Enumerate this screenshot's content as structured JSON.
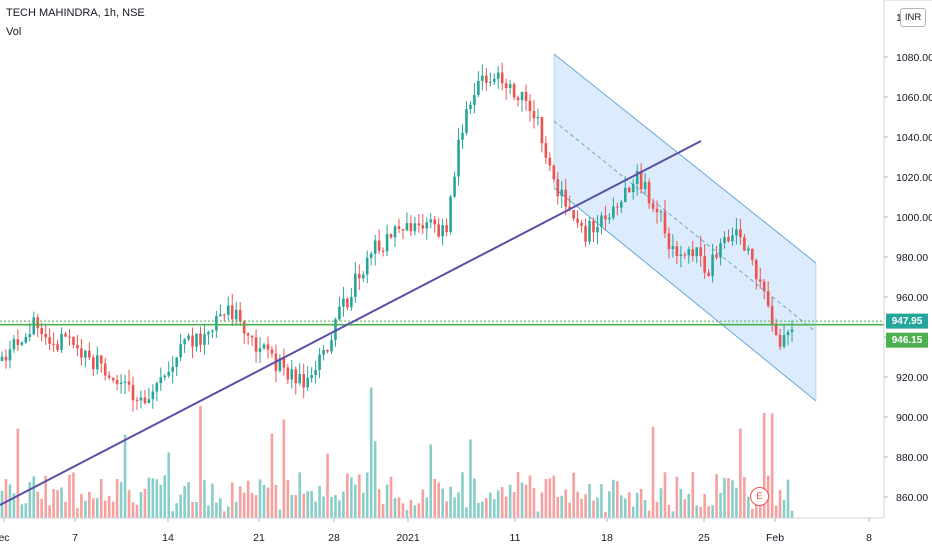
{
  "header": {
    "symbol_line": "TECH MAHINDRA, 1h, NSE",
    "indicator": "Vol"
  },
  "currency_badge": "INR",
  "earnings_marker": "E",
  "price_labels": {
    "upper": "947.95",
    "lower": "946.15"
  },
  "colors": {
    "up": "#26a69a",
    "down": "#ef5350",
    "trendline": "#5b4ea6",
    "horizontal_line": "#4caf50",
    "channel_line": "#6aa6d8",
    "channel_fill": "#d6e9fb",
    "label_upper_bg": "#26a69a",
    "label_lower_bg": "#4caf50"
  },
  "chart_data": {
    "type": "candlestick",
    "title": "TECH MAHINDRA, 1h, NSE",
    "y_axis": {
      "ticks": [
        "1080.00",
        "1060.00",
        "1040.00",
        "1020.00",
        "1000.00",
        "980.00",
        "960.00",
        "940.00",
        "920.00",
        "900.00",
        "880.00",
        "860.00"
      ],
      "range": [
        856,
        1100
      ]
    },
    "x_axis": {
      "tick_labels": [
        "ec",
        "7",
        "14",
        "21",
        "28",
        "2021",
        "11",
        "18",
        "25",
        "Feb",
        "8"
      ]
    },
    "price_path": [
      [
        0,
        928
      ],
      [
        1,
        938
      ],
      [
        2,
        946
      ],
      [
        3,
        944
      ],
      [
        4,
        938
      ],
      [
        5,
        935
      ],
      [
        6,
        932
      ],
      [
        7,
        926
      ],
      [
        8,
        920
      ],
      [
        9,
        912
      ],
      [
        10,
        908
      ],
      [
        11,
        915
      ],
      [
        12,
        926
      ],
      [
        13,
        935
      ],
      [
        14,
        938
      ],
      [
        15,
        944
      ],
      [
        16,
        952
      ],
      [
        17,
        950
      ],
      [
        18,
        940
      ],
      [
        19,
        932
      ],
      [
        20,
        925
      ],
      [
        21,
        920
      ],
      [
        22,
        918
      ],
      [
        23,
        930
      ],
      [
        24,
        946
      ],
      [
        25,
        960
      ],
      [
        26,
        975
      ],
      [
        27,
        985
      ],
      [
        28,
        988
      ],
      [
        29,
        995
      ],
      [
        30,
        1000
      ],
      [
        31,
        995
      ],
      [
        32,
        990
      ],
      [
        33,
        1040
      ],
      [
        34,
        1060
      ],
      [
        35,
        1072
      ],
      [
        36,
        1070
      ],
      [
        37,
        1062
      ],
      [
        38,
        1055
      ],
      [
        39,
        1040
      ],
      [
        40,
        1015
      ],
      [
        41,
        1000
      ],
      [
        42,
        990
      ],
      [
        43,
        998
      ],
      [
        44,
        1005
      ],
      [
        45,
        1015
      ],
      [
        46,
        1020
      ],
      [
        47,
        1008
      ],
      [
        48,
        990
      ],
      [
        49,
        978
      ],
      [
        50,
        982
      ],
      [
        51,
        975
      ],
      [
        52,
        985
      ],
      [
        53,
        990
      ],
      [
        54,
        978
      ],
      [
        55,
        960
      ],
      [
        56,
        935
      ],
      [
        57,
        945
      ]
    ],
    "annotations": {
      "horizontal_lines": [
        947.95,
        946.15
      ],
      "trendline_points": [
        [
          "start of Dec",
          858
        ],
        [
          "end of Jan 22",
          1037
        ]
      ],
      "channel": {
        "upper": [
          [
            "Jan 13",
            1080
          ],
          [
            "Feb 4",
            977
          ]
        ],
        "lower": [
          [
            "Jan 13",
            1013
          ],
          [
            "Feb 4",
            908
          ]
        ]
      },
      "last_price_labels": [
        "947.95",
        "946.15"
      ]
    },
    "volume_series": "Vol",
    "grid": false,
    "legend": "none"
  }
}
